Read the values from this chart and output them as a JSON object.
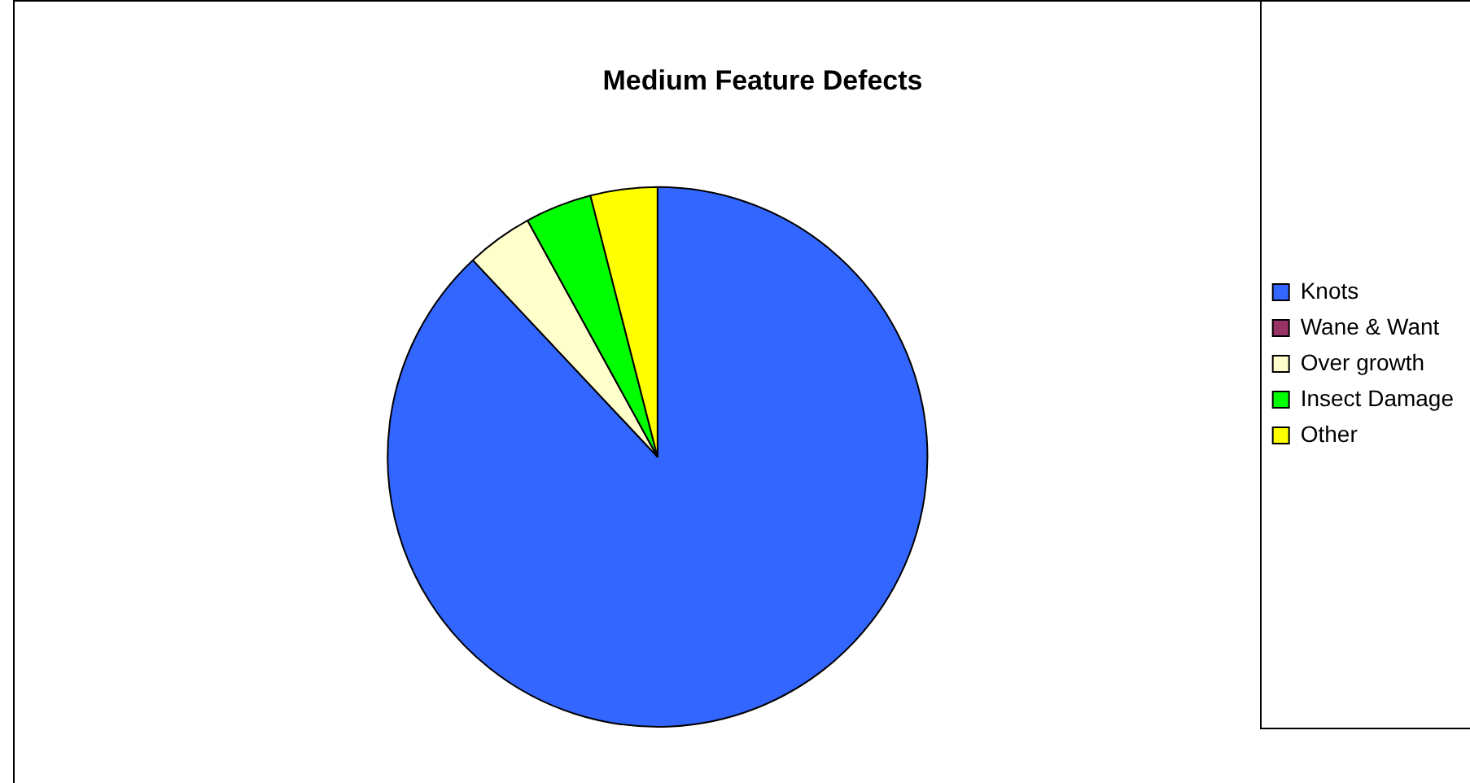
{
  "chart_data": {
    "type": "pie",
    "title": "Medium Feature Defects",
    "categories": [
      "Knots",
      "Wane & Want",
      "Over growth",
      "Insect Damage",
      "Other"
    ],
    "values": [
      88,
      0,
      4,
      4,
      4
    ],
    "colors": [
      "#3366ff",
      "#993366",
      "#ffffcc",
      "#00ff00",
      "#ffff00"
    ],
    "legend": "right"
  }
}
